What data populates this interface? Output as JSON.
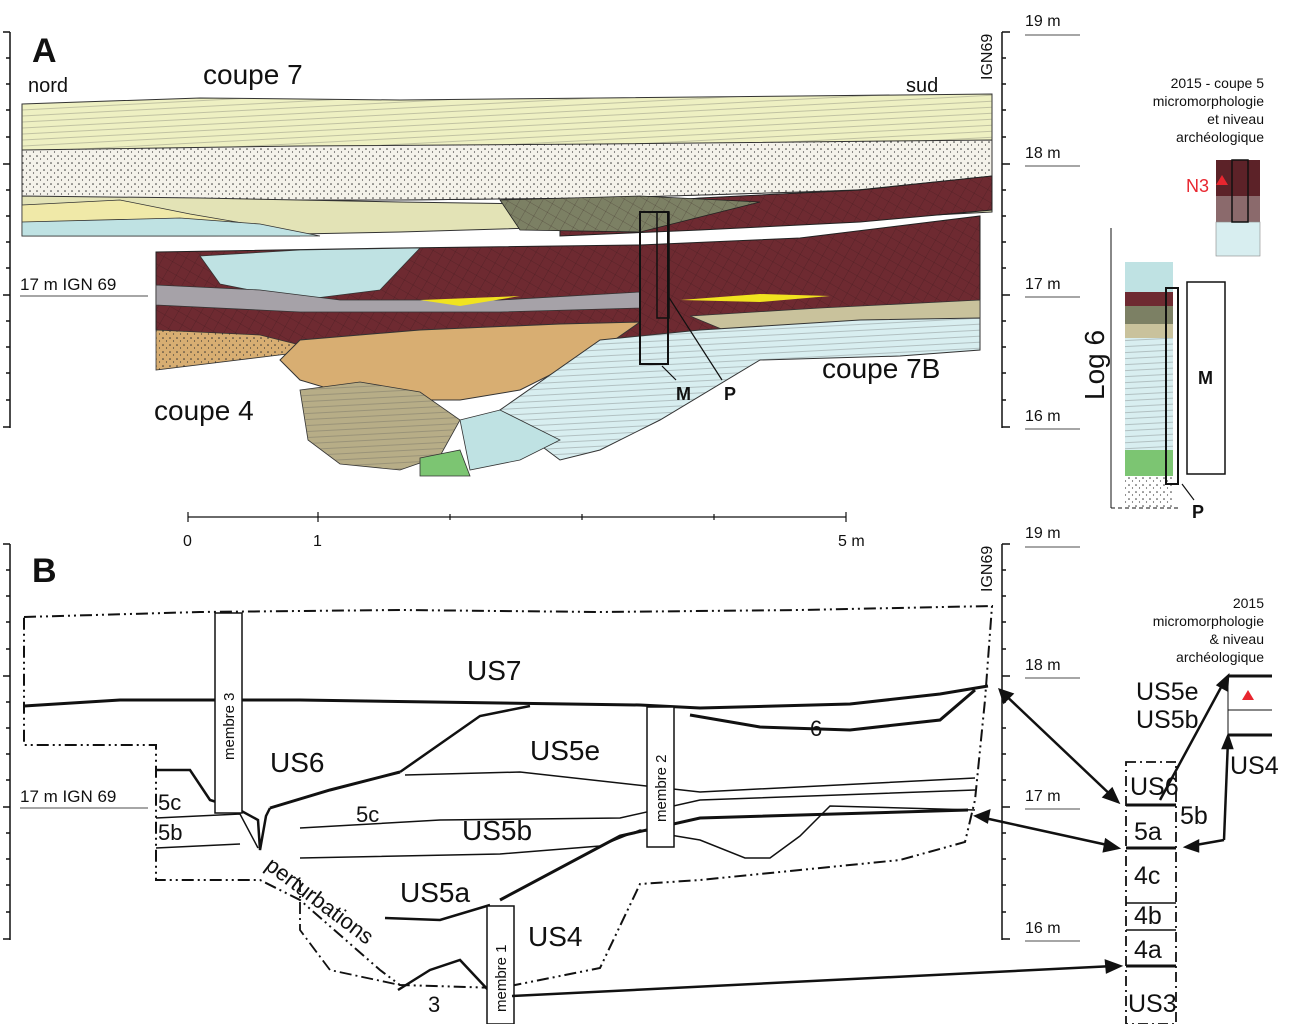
{
  "panel_a": {
    "letter": "A",
    "section_north": "nord",
    "section_south": "sud",
    "section_7": "coupe 7",
    "section_4": "coupe 4",
    "section_7b": "coupe 7B",
    "ign_ref": "17 m IGN 69",
    "ign_axis": "IGN69",
    "label_m": "M",
    "label_p": "P",
    "elev_19": "19 m",
    "elev_18": "18 m",
    "elev_17": "17 m",
    "elev_16": "16 m",
    "log_title": "Log 6",
    "log_m": "M",
    "log_p": "P",
    "inset_line1": "2015 - coupe 5",
    "inset_line2": "micromorphologie",
    "inset_line3": "et niveau",
    "inset_line4": "archéologique",
    "inset_marker": "N3"
  },
  "scale_bar": {
    "t0": "0",
    "t1": "1",
    "t5": "5 m"
  },
  "panel_b": {
    "letter": "B",
    "ign_ref": "17 m IGN 69",
    "ign_axis": "IGN69",
    "elev_19": "19 m",
    "elev_18": "18 m",
    "elev_17": "17 m",
    "elev_16": "16 m",
    "us7": "US7",
    "us6": "US6",
    "us5e": "US5e",
    "us5b": "US5b",
    "us5a": "US5a",
    "us4": "US4",
    "u5c_a": "5c",
    "u5c_b": "5c",
    "u5b_left": "5b",
    "u6": "6",
    "u3": "3",
    "perturbations": "perturbations",
    "membre_3": "membre 3",
    "membre_2": "membre 2",
    "membre_1": "membre 1",
    "col_us6": "US6",
    "col_5a": "5a",
    "col_4c": "4c",
    "col_4b": "4b",
    "col_4a": "4a",
    "col_us3": "US3",
    "side_5b": "5b",
    "inset_us5e": "US5e",
    "inset_us5b": "US5b",
    "inset_us4": "US4",
    "inset_line1": "2015",
    "inset_line2": "micromorphologie",
    "inset_line3": "& niveau",
    "inset_line4": "archéologique"
  },
  "colors": {
    "us7_silt": "#eef0c2",
    "sand": "#f4f2ea",
    "dark_brown": "#6e2a31",
    "mid_brown": "#7b3a3e",
    "olive": "#7c8064",
    "tan": "#d8ae72",
    "grey": "#a6a2a8",
    "light_blue": "#d8eef0",
    "pale_blue": "#bfe2e3",
    "khaki": "#c9c29c",
    "green": "#7cc572",
    "yellow": "#f1e31f",
    "marker_red": "#e8262f"
  }
}
